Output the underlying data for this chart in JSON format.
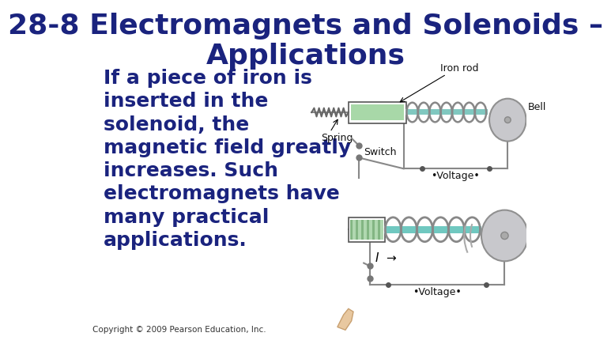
{
  "title_line1": "28-8 Electromagnets and Solenoids –",
  "title_line2": "Applications",
  "title_color": "#1a237e",
  "title_fontsize": 26,
  "body_text_lines": [
    "If a piece of iron is",
    "inserted in the",
    "solenoid, the",
    "magnetic field greatly",
    "increases. Such",
    "electromagnets have",
    "many practical",
    "applications."
  ],
  "body_color": "#1a237e",
  "body_fontsize": 18,
  "copyright_text": "Copyright © 2009 Pearson Education, Inc.",
  "copyright_fontsize": 7.5,
  "copyright_color": "#333333",
  "background_color": "#ffffff",
  "wire_color": "#888888",
  "iron_color_top": "#90c090",
  "iron_color_bot": "#90c0c0",
  "bell_face": "#c8c8cc",
  "bell_edge": "#909090",
  "coil_color": "#888888",
  "switch_color": "#888888",
  "label_color": "#111111",
  "label_fontsize": 9
}
